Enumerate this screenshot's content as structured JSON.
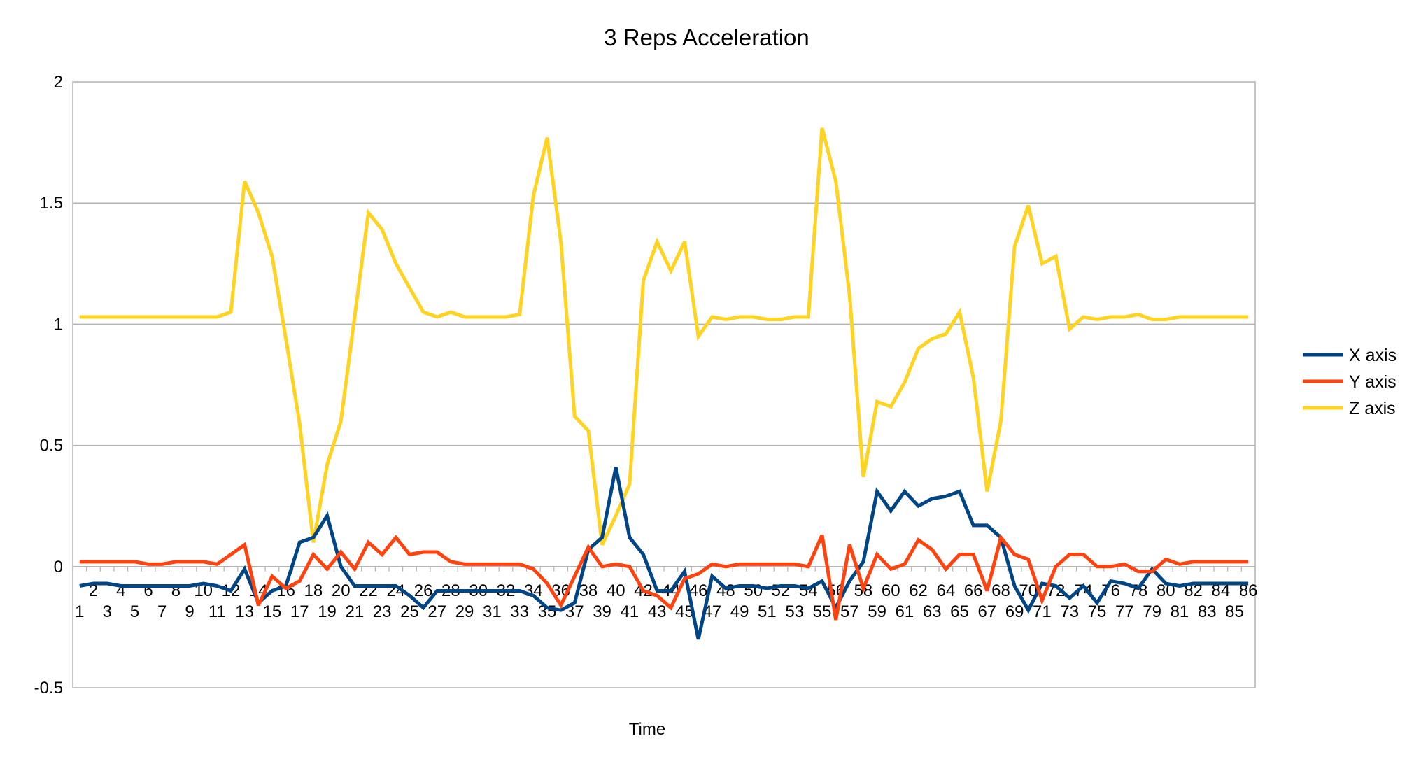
{
  "chart_data": {
    "type": "line",
    "title": "3 Reps Acceleration",
    "xlabel": "Time",
    "ylabel": "",
    "ylim": [
      -0.5,
      2
    ],
    "yticks": [
      -0.5,
      0,
      0.5,
      1,
      1.5,
      2
    ],
    "ytick_labels": [
      "-0.5",
      "0",
      "0.5",
      "1",
      "1.5",
      "2"
    ],
    "grid": "horizontal",
    "legend_position": "right",
    "x": [
      1,
      2,
      3,
      4,
      5,
      6,
      7,
      8,
      9,
      10,
      11,
      12,
      13,
      14,
      15,
      16,
      17,
      18,
      19,
      20,
      21,
      22,
      23,
      24,
      25,
      26,
      27,
      28,
      29,
      30,
      31,
      32,
      33,
      34,
      35,
      36,
      37,
      38,
      39,
      40,
      41,
      42,
      43,
      44,
      45,
      46,
      47,
      48,
      49,
      50,
      51,
      52,
      53,
      54,
      55,
      56,
      57,
      58,
      59,
      60,
      61,
      62,
      63,
      64,
      65,
      66,
      67,
      68,
      69,
      70,
      71,
      72,
      73,
      74,
      75,
      76,
      77,
      78,
      79,
      80,
      81,
      82,
      83,
      84,
      85,
      86
    ],
    "series": [
      {
        "name": "X axis",
        "color": "#004586",
        "values": [
          -0.08,
          -0.07,
          -0.07,
          -0.08,
          -0.08,
          -0.08,
          -0.08,
          -0.08,
          -0.08,
          -0.07,
          -0.08,
          -0.1,
          -0.01,
          -0.15,
          -0.1,
          -0.08,
          0.1,
          0.12,
          0.21,
          0.0,
          -0.08,
          -0.08,
          -0.08,
          -0.08,
          -0.12,
          -0.17,
          -0.1,
          -0.1,
          -0.1,
          -0.1,
          -0.1,
          -0.1,
          -0.1,
          -0.12,
          -0.17,
          -0.18,
          -0.15,
          0.07,
          0.12,
          0.41,
          0.12,
          0.05,
          -0.1,
          -0.1,
          -0.02,
          -0.3,
          -0.04,
          -0.09,
          -0.08,
          -0.08,
          -0.09,
          -0.08,
          -0.08,
          -0.09,
          -0.06,
          -0.17,
          -0.06,
          0.02,
          0.31,
          0.23,
          0.31,
          0.25,
          0.28,
          0.29,
          0.31,
          0.17,
          0.17,
          0.12,
          -0.08,
          -0.18,
          -0.07,
          -0.08,
          -0.13,
          -0.08,
          -0.15,
          -0.06,
          -0.07,
          -0.09,
          -0.01,
          -0.07,
          -0.08,
          -0.07,
          -0.07,
          -0.07,
          -0.07,
          -0.07
        ]
      },
      {
        "name": "Y axis",
        "color": "#ff420e",
        "values": [
          0.02,
          0.02,
          0.02,
          0.02,
          0.02,
          0.01,
          0.01,
          0.02,
          0.02,
          0.02,
          0.01,
          0.05,
          0.09,
          -0.16,
          -0.04,
          -0.09,
          -0.06,
          0.05,
          -0.01,
          0.06,
          -0.01,
          0.1,
          0.05,
          0.12,
          0.05,
          0.06,
          0.06,
          0.02,
          0.01,
          0.01,
          0.01,
          0.01,
          0.01,
          -0.01,
          -0.07,
          -0.16,
          -0.04,
          0.08,
          0.0,
          0.01,
          0.0,
          -0.1,
          -0.12,
          -0.17,
          -0.05,
          -0.03,
          0.01,
          0.0,
          0.01,
          0.01,
          0.01,
          0.01,
          0.01,
          0.0,
          0.13,
          -0.22,
          0.09,
          -0.09,
          0.05,
          -0.01,
          0.01,
          0.11,
          0.07,
          -0.01,
          0.05,
          0.05,
          -0.1,
          0.12,
          0.05,
          0.03,
          -0.14,
          0.0,
          0.05,
          0.05,
          0.0,
          0.0,
          0.01,
          -0.02,
          -0.02,
          0.03,
          0.01,
          0.02,
          0.02,
          0.02,
          0.02,
          0.02
        ]
      },
      {
        "name": "Z axis",
        "color": "#ffd320",
        "values": [
          1.03,
          1.03,
          1.03,
          1.03,
          1.03,
          1.03,
          1.03,
          1.03,
          1.03,
          1.03,
          1.03,
          1.05,
          1.59,
          1.46,
          1.28,
          0.94,
          0.59,
          0.1,
          0.42,
          0.6,
          1.03,
          1.46,
          1.39,
          1.25,
          1.15,
          1.05,
          1.03,
          1.05,
          1.03,
          1.03,
          1.03,
          1.03,
          1.04,
          1.53,
          1.77,
          1.34,
          0.62,
          0.56,
          0.09,
          0.21,
          0.34,
          1.18,
          1.34,
          1.22,
          1.34,
          0.95,
          1.03,
          1.02,
          1.03,
          1.03,
          1.02,
          1.02,
          1.03,
          1.03,
          1.81,
          1.59,
          1.12,
          0.37,
          0.68,
          0.66,
          0.76,
          0.9,
          0.94,
          0.96,
          1.05,
          0.78,
          0.31,
          0.6,
          1.32,
          1.49,
          1.25,
          1.28,
          0.98,
          1.03,
          1.02,
          1.03,
          1.03,
          1.04,
          1.02,
          1.02,
          1.03,
          1.03,
          1.03,
          1.03,
          1.03,
          1.03
        ]
      }
    ]
  }
}
